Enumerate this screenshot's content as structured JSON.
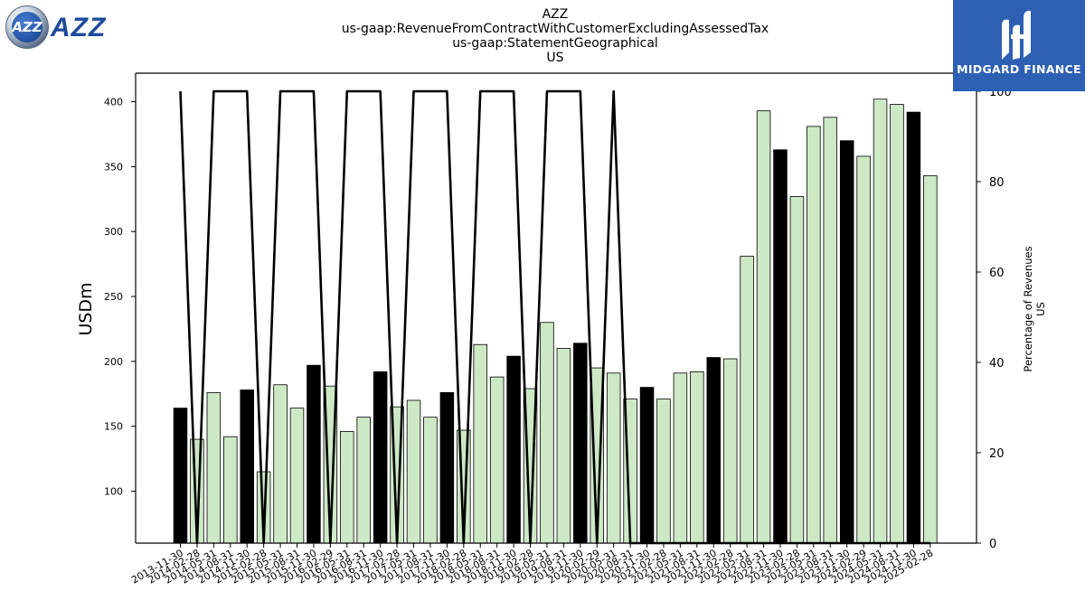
{
  "header": {
    "title_lines": [
      "AZZ",
      "us-gaap:RevenueFromContractWithCustomerExcludingAssessedTax",
      "us-gaap:StatementGeographical",
      "US"
    ]
  },
  "logos": {
    "left": {
      "mark_text": "AZZ",
      "word": "AZZ"
    },
    "right": {
      "brand": "MIDGARD FINANCE"
    }
  },
  "chart_data": {
    "type": "bar",
    "title": "AZZ",
    "subtitle": [
      "us-gaap:RevenueFromContractWithCustomerExcludingAssessedTax",
      "us-gaap:StatementGeographical",
      "US"
    ],
    "xlabel": "",
    "ylabel": "USDm",
    "y2label": [
      "Percentage of Revenues",
      "US"
    ],
    "ylim": [
      60,
      422
    ],
    "y2lim": [
      0,
      104
    ],
    "yticks": [
      100,
      150,
      200,
      250,
      300,
      350,
      400
    ],
    "y2ticks": [
      0,
      20,
      40,
      60,
      80,
      100
    ],
    "grid": false,
    "colors": {
      "annual": "#000000",
      "quarter": "#cde8c5",
      "edge": "#000000",
      "line": "#000000"
    },
    "categories": [
      "2013-11-30",
      "2014-02-28",
      "2014-05-31",
      "2014-08-31",
      "2014-11-30",
      "2015-02-28",
      "2015-05-31",
      "2015-08-31",
      "2015-11-30",
      "2016-02-29",
      "2016-05-31",
      "2016-08-31",
      "2016-11-30",
      "2017-02-28",
      "2017-05-31",
      "2017-08-31",
      "2017-11-30",
      "2018-02-28",
      "2018-05-31",
      "2018-08-31",
      "2018-11-30",
      "2019-02-28",
      "2019-05-31",
      "2019-08-31",
      "2019-11-30",
      "2020-02-29",
      "2020-05-31",
      "2020-08-31",
      "2020-11-30",
      "2021-02-28",
      "2021-05-31",
      "2021-08-31",
      "2021-11-30",
      "2022-02-28",
      "2022-05-31",
      "2022-08-31",
      "2022-11-30",
      "2023-02-28",
      "2023-05-31",
      "2023-08-31",
      "2023-11-30",
      "2024-02-29",
      "2024-05-31",
      "2024-08-31",
      "2024-11-30",
      "2025-02-28"
    ],
    "series": [
      {
        "kind": "bar",
        "values": [
          164,
          140,
          176,
          142,
          178,
          115,
          182,
          164,
          197,
          181,
          146,
          157,
          192,
          165,
          170,
          157,
          176,
          147,
          213,
          188,
          204,
          179,
          230,
          210,
          214,
          195,
          191,
          171,
          180,
          171,
          191,
          192,
          203,
          202,
          281,
          393,
          363,
          327,
          381,
          388,
          370,
          358,
          402,
          398,
          392,
          343
        ],
        "highlight": [
          true,
          false,
          false,
          false,
          true,
          false,
          false,
          false,
          true,
          false,
          false,
          false,
          true,
          false,
          false,
          false,
          true,
          false,
          false,
          false,
          true,
          false,
          false,
          false,
          true,
          false,
          false,
          false,
          true,
          false,
          false,
          false,
          true,
          false,
          false,
          false,
          true,
          false,
          false,
          false,
          true,
          false,
          false,
          false,
          true,
          false
        ]
      },
      {
        "kind": "line",
        "axis": "right",
        "values": [
          100,
          0,
          100,
          100,
          100,
          0,
          100,
          100,
          100,
          0,
          100,
          100,
          100,
          0,
          100,
          100,
          100,
          0,
          100,
          100,
          100,
          0,
          100,
          100,
          100,
          0,
          100,
          0,
          0,
          0,
          0,
          0,
          0,
          0,
          0,
          0,
          0,
          0,
          0,
          0,
          0,
          0,
          0,
          0,
          0,
          0
        ]
      }
    ]
  }
}
